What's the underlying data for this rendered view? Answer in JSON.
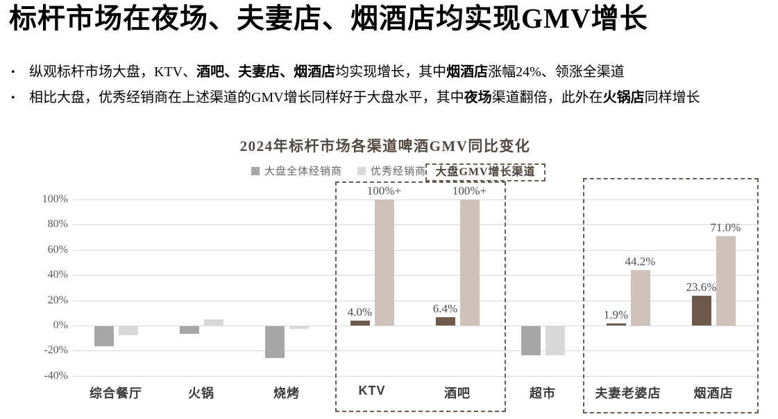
{
  "title": "标杆市场在夜场、夫妻店、烟酒店均实现GMV增长",
  "bullets": [
    [
      {
        "t": "纵观标杆市场大盘，KTV、",
        "b": false
      },
      {
        "t": "酒吧、夫妻店、烟酒店",
        "b": true
      },
      {
        "t": "均实现增长，其中",
        "b": false
      },
      {
        "t": "烟酒店",
        "b": true
      },
      {
        "t": "涨幅24%、领涨全渠道",
        "b": false
      }
    ],
    [
      {
        "t": "相比大盘，优秀经销商在上述渠道的GMV增长同样好于大盘水平，其中",
        "b": false
      },
      {
        "t": "夜场",
        "b": true
      },
      {
        "t": "渠道翻倍，此外在",
        "b": false
      },
      {
        "t": "火锅店",
        "b": true
      },
      {
        "t": "同样增长",
        "b": false
      }
    ]
  ],
  "chart_data": {
    "type": "bar",
    "title": "2024年标杆市场各渠道啤酒GMV同比变化",
    "categories": [
      "综合餐厅",
      "火锅",
      "烧烤",
      "KTV",
      "酒吧",
      "超市",
      "夫妻老婆店",
      "烟酒店"
    ],
    "highlighted": [
      false,
      false,
      false,
      true,
      true,
      false,
      true,
      true
    ],
    "series": [
      {
        "name": "大盘全体经销商",
        "values": [
          -16,
          -6,
          -25,
          4.0,
          6.4,
          -23,
          1.9,
          23.6
        ],
        "labels": [
          "",
          "",
          "",
          "4.0%",
          "6.4%",
          "",
          "1.9%",
          "23.6%"
        ],
        "color": "#a6a6a6",
        "highlight_color": "#6f5b4e"
      },
      {
        "name": "优秀经销商",
        "values": [
          -7,
          5,
          -2,
          100,
          100,
          -23,
          44.2,
          71.0
        ],
        "labels": [
          "",
          "",
          "",
          "100%+",
          "100%+",
          "",
          "44.2%",
          "71.0%"
        ],
        "color": "#d9d9d9",
        "highlight_color": "#cec2bb"
      }
    ],
    "ylim": [
      -40,
      100
    ],
    "ytick_step": 20,
    "yticks": [
      "100%",
      "80%",
      "60%",
      "40%",
      "20%",
      "0%",
      "-20%",
      "-40%"
    ],
    "grid": true,
    "legend_position": "top",
    "annotation_box_label": "大盘GMV增长渠道",
    "growth_channel_groups": [
      [
        "KTV",
        "酒吧"
      ],
      [
        "夫妻老婆店",
        "烟酒店"
      ]
    ],
    "colors": {
      "data_label": "#474e57",
      "box_border": "#6b5b4d",
      "axis_label": "#595959",
      "chart_title": "#52483f"
    }
  }
}
